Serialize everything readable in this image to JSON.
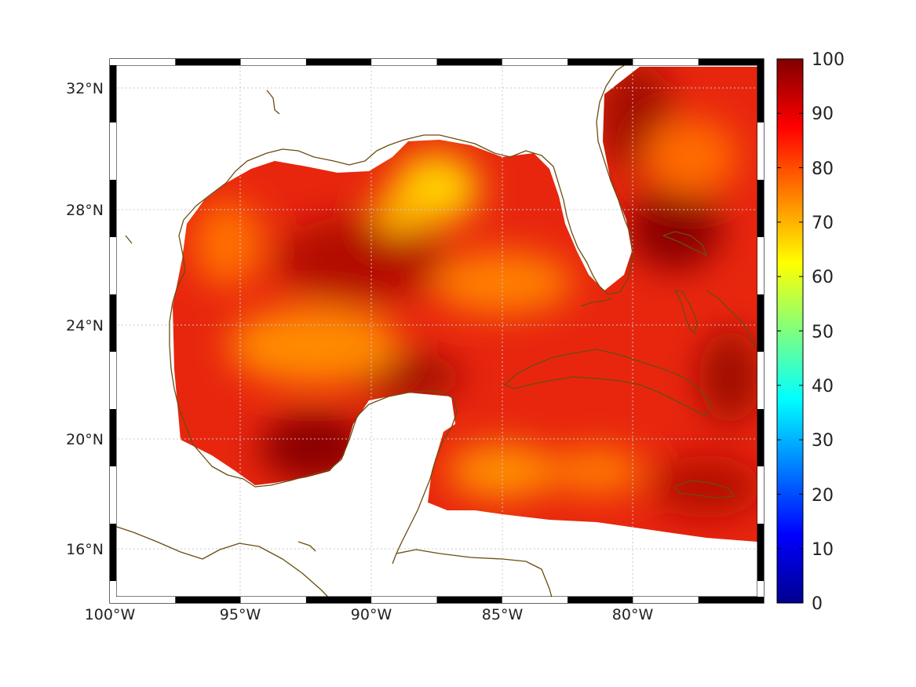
{
  "map": {
    "lat_labels": [
      "32°N",
      "28°N",
      "24°N",
      "20°N",
      "16°N"
    ],
    "lon_labels": [
      "100°W",
      "95°W",
      "90°W",
      "85°W",
      "80°W"
    ],
    "lat_values": [
      32,
      28,
      24,
      20,
      16
    ],
    "lon_values": [
      -100,
      -95,
      -90,
      -85,
      -80
    ],
    "extent": {
      "lon_min": -100,
      "lon_max": -75,
      "lat_min": 14.3,
      "lat_max": 33
    },
    "coastline_color": "#6b4c10",
    "grid_style": "dotted"
  },
  "colorbar": {
    "labels": [
      "100",
      "90",
      "80",
      "70",
      "60",
      "50",
      "40",
      "30",
      "20",
      "10",
      "0"
    ],
    "min": 0,
    "max": 100,
    "colormap": "jet"
  },
  "chart_data": {
    "type": "heatmap",
    "title": "",
    "xlabel": "",
    "ylabel": "",
    "range": [
      0,
      100
    ],
    "approx_value_range_over_water": [
      68,
      100
    ],
    "colors": {
      "dark_red": "#8b0000",
      "red": "#e31a0e",
      "orange": "#ff8c00",
      "yellow": "#ffd700"
    }
  }
}
